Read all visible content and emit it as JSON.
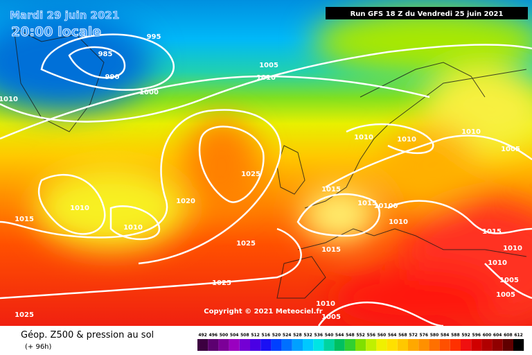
{
  "header": {
    "date": "Mardi 29 juin 2021",
    "time": "20:00 locale",
    "run": "Run GFS 18 Z du Vendredi 25 juin 2021"
  },
  "copyright": "Copyright © 2021 Meteociel.fr",
  "footer": {
    "title": "Géop. Z500 & pression au sol",
    "lead": "(+ 96h)"
  },
  "isobar_labels": [
    "995",
    "985",
    "990",
    "1000",
    "1010",
    "1005",
    "1010",
    "1025",
    "1020",
    "1010",
    "1015",
    "1010",
    "1025",
    "1015",
    "1015",
    "10100",
    "1010",
    "1010",
    "1010",
    "1010",
    "1005",
    "1015",
    "1015",
    "1010",
    "1010",
    "1005",
    "1005",
    "1025",
    "1025",
    "1010",
    "1005"
  ],
  "legend": {
    "values": [
      "492",
      "496",
      "500",
      "504",
      "508",
      "512",
      "516",
      "520",
      "524",
      "528",
      "532",
      "536",
      "540",
      "544",
      "548",
      "552",
      "556",
      "560",
      "564",
      "568",
      "572",
      "576",
      "580",
      "584",
      "588",
      "592",
      "596",
      "600",
      "604",
      "608",
      "612"
    ],
    "colors": [
      "#3c0040",
      "#5c0070",
      "#7c0098",
      "#9a00c0",
      "#7400d4",
      "#4a00e4",
      "#1a10f4",
      "#0040ff",
      "#0070ff",
      "#00a0ff",
      "#00c8ff",
      "#00e4e4",
      "#00d4a0",
      "#00c060",
      "#30d030",
      "#80e000",
      "#c0f000",
      "#f0f000",
      "#ffe000",
      "#ffc800",
      "#ffa800",
      "#ff9000",
      "#ff7000",
      "#ff5000",
      "#ff3000",
      "#f01010",
      "#d00000",
      "#b00000",
      "#900000",
      "#600000",
      "#000000"
    ]
  }
}
